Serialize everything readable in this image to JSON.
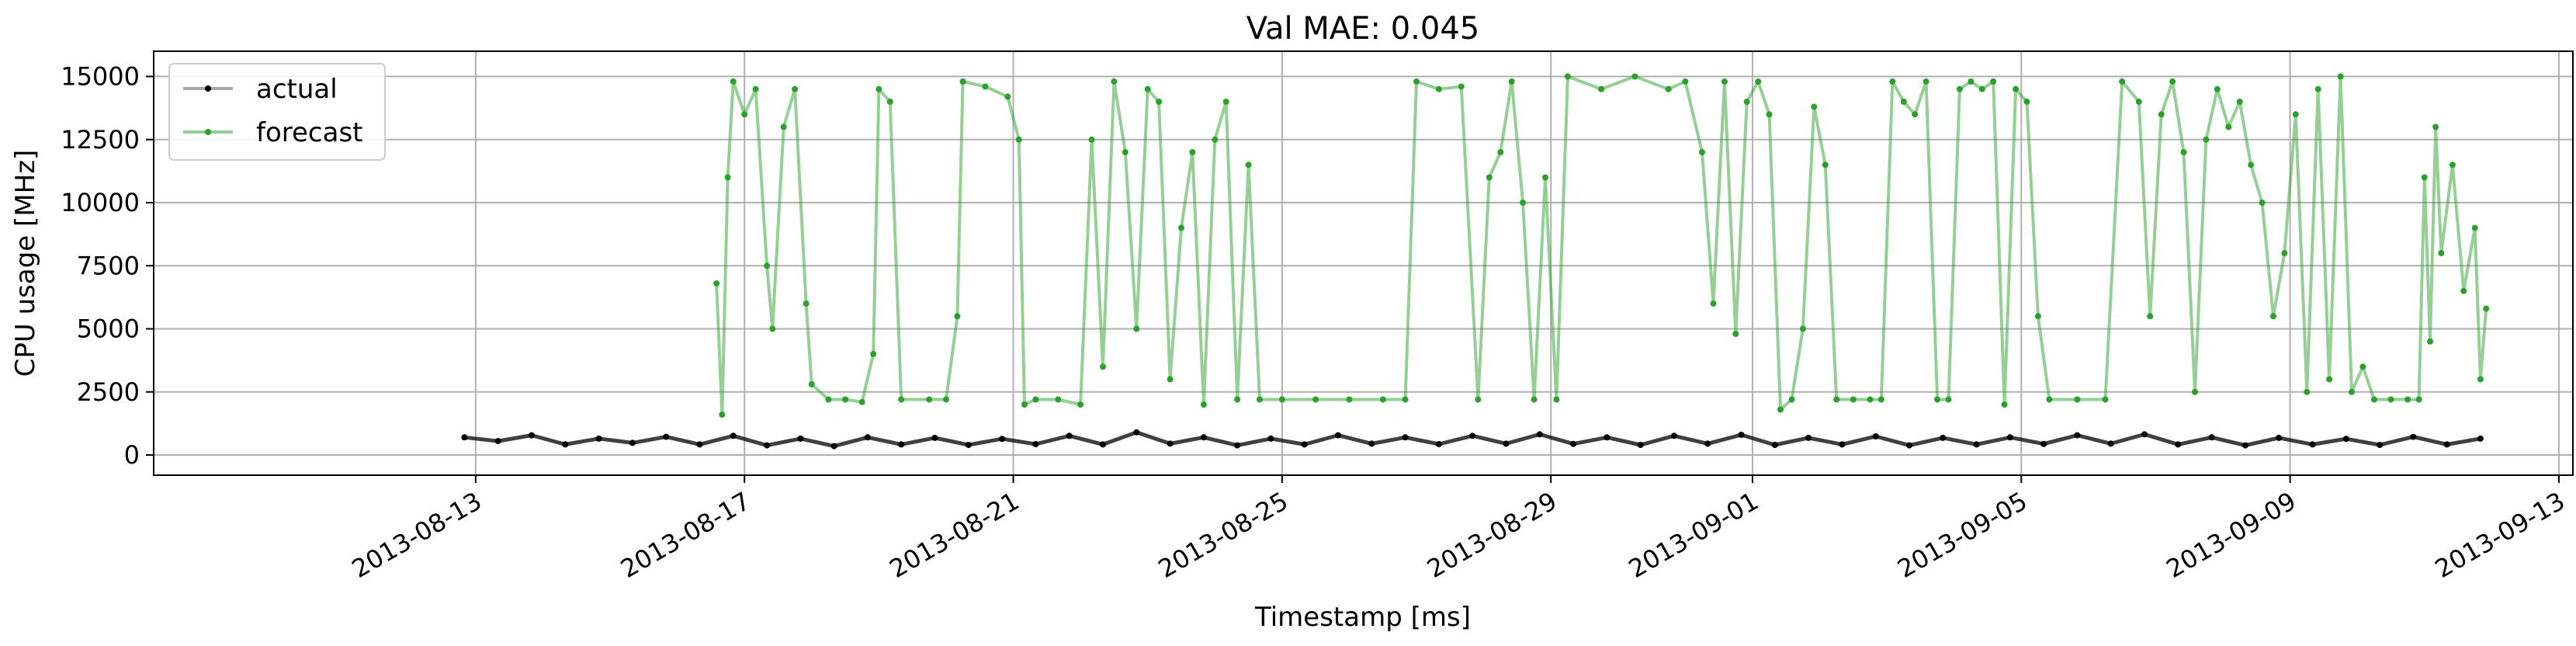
{
  "chart_data": {
    "type": "line",
    "title": "Val MAE: 0.045",
    "xlabel": "Timestamp [ms]",
    "ylabel": "CPU usage [MHz]",
    "xlim": [
      "2013-08-08T05:00",
      "2013-09-13T05:00"
    ],
    "ylim": [
      -800,
      16000
    ],
    "x_ticks": [
      "2013-08-13",
      "2013-08-17",
      "2013-08-21",
      "2013-08-25",
      "2013-08-29",
      "2013-09-01",
      "2013-09-05",
      "2013-09-09",
      "2013-09-13"
    ],
    "y_ticks": [
      0,
      2500,
      5000,
      7500,
      10000,
      12500,
      15000
    ],
    "y_tick_labels": [
      "0",
      "2500",
      "5000",
      "7500",
      "10000",
      "12500",
      "15000"
    ],
    "grid": true,
    "legend_position": "top-left",
    "series": [
      {
        "name": "actual",
        "color": "#000000",
        "points": [
          [
            "2013-08-12T20:00",
            700
          ],
          [
            "2013-08-13T08:00",
            550
          ],
          [
            "2013-08-13T20:00",
            780
          ],
          [
            "2013-08-14T08:00",
            420
          ],
          [
            "2013-08-14T20:00",
            650
          ],
          [
            "2013-08-15T08:00",
            480
          ],
          [
            "2013-08-15T20:00",
            720
          ],
          [
            "2013-08-16T08:00",
            420
          ],
          [
            "2013-08-16T20:00",
            760
          ],
          [
            "2013-08-17T08:00",
            380
          ],
          [
            "2013-08-17T20:00",
            650
          ],
          [
            "2013-08-18T08:00",
            350
          ],
          [
            "2013-08-18T20:00",
            700
          ],
          [
            "2013-08-19T08:00",
            420
          ],
          [
            "2013-08-19T20:00",
            680
          ],
          [
            "2013-08-20T08:00",
            400
          ],
          [
            "2013-08-20T20:00",
            640
          ],
          [
            "2013-08-21T08:00",
            430
          ],
          [
            "2013-08-21T20:00",
            760
          ],
          [
            "2013-08-22T08:00",
            420
          ],
          [
            "2013-08-22T20:00",
            900
          ],
          [
            "2013-08-23T08:00",
            450
          ],
          [
            "2013-08-23T20:00",
            700
          ],
          [
            "2013-08-24T08:00",
            380
          ],
          [
            "2013-08-24T20:00",
            650
          ],
          [
            "2013-08-25T08:00",
            420
          ],
          [
            "2013-08-25T20:00",
            780
          ],
          [
            "2013-08-26T08:00",
            450
          ],
          [
            "2013-08-26T20:00",
            700
          ],
          [
            "2013-08-27T08:00",
            430
          ],
          [
            "2013-08-27T20:00",
            760
          ],
          [
            "2013-08-28T08:00",
            450
          ],
          [
            "2013-08-28T20:00",
            820
          ],
          [
            "2013-08-29T08:00",
            440
          ],
          [
            "2013-08-29T20:00",
            700
          ],
          [
            "2013-08-30T08:00",
            400
          ],
          [
            "2013-08-30T20:00",
            760
          ],
          [
            "2013-08-31T08:00",
            450
          ],
          [
            "2013-08-31T20:00",
            800
          ],
          [
            "2013-09-01T08:00",
            400
          ],
          [
            "2013-09-01T20:00",
            680
          ],
          [
            "2013-09-02T08:00",
            420
          ],
          [
            "2013-09-02T20:00",
            740
          ],
          [
            "2013-09-03T08:00",
            380
          ],
          [
            "2013-09-03T20:00",
            680
          ],
          [
            "2013-09-04T08:00",
            420
          ],
          [
            "2013-09-04T20:00",
            700
          ],
          [
            "2013-09-05T08:00",
            440
          ],
          [
            "2013-09-05T20:00",
            780
          ],
          [
            "2013-09-06T08:00",
            450
          ],
          [
            "2013-09-06T20:00",
            820
          ],
          [
            "2013-09-07T08:00",
            420
          ],
          [
            "2013-09-07T20:00",
            700
          ],
          [
            "2013-09-08T08:00",
            380
          ],
          [
            "2013-09-08T20:00",
            680
          ],
          [
            "2013-09-09T08:00",
            420
          ],
          [
            "2013-09-09T20:00",
            640
          ],
          [
            "2013-09-10T08:00",
            400
          ],
          [
            "2013-09-10T20:00",
            720
          ],
          [
            "2013-09-11T08:00",
            420
          ],
          [
            "2013-09-11T20:00",
            650
          ]
        ]
      },
      {
        "name": "forecast",
        "color": "#2ca02c",
        "points": [
          [
            "2013-08-16T14:00",
            6800
          ],
          [
            "2013-08-16T16:00",
            1600
          ],
          [
            "2013-08-16T18:00",
            11000
          ],
          [
            "2013-08-16T20:00",
            14800
          ],
          [
            "2013-08-17T00:00",
            13500
          ],
          [
            "2013-08-17T04:00",
            14500
          ],
          [
            "2013-08-17T08:00",
            7500
          ],
          [
            "2013-08-17T10:00",
            5000
          ],
          [
            "2013-08-17T14:00",
            13000
          ],
          [
            "2013-08-17T18:00",
            14500
          ],
          [
            "2013-08-17T22:00",
            6000
          ],
          [
            "2013-08-18T00:00",
            2800
          ],
          [
            "2013-08-18T06:00",
            2200
          ],
          [
            "2013-08-18T12:00",
            2200
          ],
          [
            "2013-08-18T18:00",
            2100
          ],
          [
            "2013-08-18T22:00",
            4000
          ],
          [
            "2013-08-19T00:00",
            14500
          ],
          [
            "2013-08-19T04:00",
            14000
          ],
          [
            "2013-08-19T08:00",
            2200
          ],
          [
            "2013-08-19T18:00",
            2200
          ],
          [
            "2013-08-20T00:00",
            2200
          ],
          [
            "2013-08-20T04:00",
            5500
          ],
          [
            "2013-08-20T06:00",
            14800
          ],
          [
            "2013-08-20T14:00",
            14600
          ],
          [
            "2013-08-20T22:00",
            14200
          ],
          [
            "2013-08-21T02:00",
            12500
          ],
          [
            "2013-08-21T04:00",
            2000
          ],
          [
            "2013-08-21T08:00",
            2200
          ],
          [
            "2013-08-21T16:00",
            2200
          ],
          [
            "2013-08-22T00:00",
            2000
          ],
          [
            "2013-08-22T04:00",
            12500
          ],
          [
            "2013-08-22T08:00",
            3500
          ],
          [
            "2013-08-22T12:00",
            14800
          ],
          [
            "2013-08-22T16:00",
            12000
          ],
          [
            "2013-08-22T20:00",
            5000
          ],
          [
            "2013-08-23T00:00",
            14500
          ],
          [
            "2013-08-23T04:00",
            14000
          ],
          [
            "2013-08-23T08:00",
            3000
          ],
          [
            "2013-08-23T12:00",
            9000
          ],
          [
            "2013-08-23T16:00",
            12000
          ],
          [
            "2013-08-23T20:00",
            2000
          ],
          [
            "2013-08-24T00:00",
            12500
          ],
          [
            "2013-08-24T04:00",
            14000
          ],
          [
            "2013-08-24T08:00",
            2200
          ],
          [
            "2013-08-24T12:00",
            11500
          ],
          [
            "2013-08-24T16:00",
            2200
          ],
          [
            "2013-08-25T00:00",
            2200
          ],
          [
            "2013-08-25T12:00",
            2200
          ],
          [
            "2013-08-26T00:00",
            2200
          ],
          [
            "2013-08-26T12:00",
            2200
          ],
          [
            "2013-08-26T20:00",
            2200
          ],
          [
            "2013-08-27T00:00",
            14800
          ],
          [
            "2013-08-27T08:00",
            14500
          ],
          [
            "2013-08-27T16:00",
            14600
          ],
          [
            "2013-08-27T22:00",
            2200
          ],
          [
            "2013-08-28T02:00",
            11000
          ],
          [
            "2013-08-28T06:00",
            12000
          ],
          [
            "2013-08-28T10:00",
            14800
          ],
          [
            "2013-08-28T14:00",
            10000
          ],
          [
            "2013-08-28T18:00",
            2200
          ],
          [
            "2013-08-28T22:00",
            11000
          ],
          [
            "2013-08-29T02:00",
            2200
          ],
          [
            "2013-08-29T06:00",
            15000
          ],
          [
            "2013-08-29T18:00",
            14500
          ],
          [
            "2013-08-30T06:00",
            15000
          ],
          [
            "2013-08-30T18:00",
            14500
          ],
          [
            "2013-08-31T00:00",
            14800
          ],
          [
            "2013-08-31T06:00",
            12000
          ],
          [
            "2013-08-31T10:00",
            6000
          ],
          [
            "2013-08-31T14:00",
            14800
          ],
          [
            "2013-08-31T18:00",
            4800
          ],
          [
            "2013-08-31T22:00",
            14000
          ],
          [
            "2013-09-01T02:00",
            14800
          ],
          [
            "2013-09-01T06:00",
            13500
          ],
          [
            "2013-09-01T10:00",
            1800
          ],
          [
            "2013-09-01T14:00",
            2200
          ],
          [
            "2013-09-01T18:00",
            5000
          ],
          [
            "2013-09-01T22:00",
            13800
          ],
          [
            "2013-09-02T02:00",
            11500
          ],
          [
            "2013-09-02T06:00",
            2200
          ],
          [
            "2013-09-02T12:00",
            2200
          ],
          [
            "2013-09-02T18:00",
            2200
          ],
          [
            "2013-09-02T22:00",
            2200
          ],
          [
            "2013-09-03T02:00",
            14800
          ],
          [
            "2013-09-03T06:00",
            14000
          ],
          [
            "2013-09-03T10:00",
            13500
          ],
          [
            "2013-09-03T14:00",
            14800
          ],
          [
            "2013-09-03T18:00",
            2200
          ],
          [
            "2013-09-03T22:00",
            2200
          ],
          [
            "2013-09-04T02:00",
            14500
          ],
          [
            "2013-09-04T06:00",
            14800
          ],
          [
            "2013-09-04T10:00",
            14500
          ],
          [
            "2013-09-04T14:00",
            14800
          ],
          [
            "2013-09-04T18:00",
            2000
          ],
          [
            "2013-09-04T22:00",
            14500
          ],
          [
            "2013-09-05T02:00",
            14000
          ],
          [
            "2013-09-05T06:00",
            5500
          ],
          [
            "2013-09-05T10:00",
            2200
          ],
          [
            "2013-09-05T20:00",
            2200
          ],
          [
            "2013-09-06T06:00",
            2200
          ],
          [
            "2013-09-06T12:00",
            14800
          ],
          [
            "2013-09-06T18:00",
            14000
          ],
          [
            "2013-09-06T22:00",
            5500
          ],
          [
            "2013-09-07T02:00",
            13500
          ],
          [
            "2013-09-07T06:00",
            14800
          ],
          [
            "2013-09-07T10:00",
            12000
          ],
          [
            "2013-09-07T14:00",
            2500
          ],
          [
            "2013-09-07T18:00",
            12500
          ],
          [
            "2013-09-07T22:00",
            14500
          ],
          [
            "2013-09-08T02:00",
            13000
          ],
          [
            "2013-09-08T06:00",
            14000
          ],
          [
            "2013-09-08T10:00",
            11500
          ],
          [
            "2013-09-08T14:00",
            10000
          ],
          [
            "2013-09-08T18:00",
            5500
          ],
          [
            "2013-09-08T22:00",
            8000
          ],
          [
            "2013-09-09T02:00",
            13500
          ],
          [
            "2013-09-09T06:00",
            2500
          ],
          [
            "2013-09-09T10:00",
            14500
          ],
          [
            "2013-09-09T14:00",
            3000
          ],
          [
            "2013-09-09T18:00",
            15000
          ],
          [
            "2013-09-09T22:00",
            2500
          ],
          [
            "2013-09-10T02:00",
            3500
          ],
          [
            "2013-09-10T06:00",
            2200
          ],
          [
            "2013-09-10T12:00",
            2200
          ],
          [
            "2013-09-10T18:00",
            2200
          ],
          [
            "2013-09-10T22:00",
            2200
          ],
          [
            "2013-09-11T00:00",
            11000
          ],
          [
            "2013-09-11T02:00",
            4500
          ],
          [
            "2013-09-11T04:00",
            13000
          ],
          [
            "2013-09-11T06:00",
            8000
          ],
          [
            "2013-09-11T10:00",
            11500
          ],
          [
            "2013-09-11T14:00",
            6500
          ],
          [
            "2013-09-11T18:00",
            9000
          ],
          [
            "2013-09-11T20:00",
            3000
          ],
          [
            "2013-09-11T22:00",
            5800
          ]
        ]
      }
    ]
  }
}
